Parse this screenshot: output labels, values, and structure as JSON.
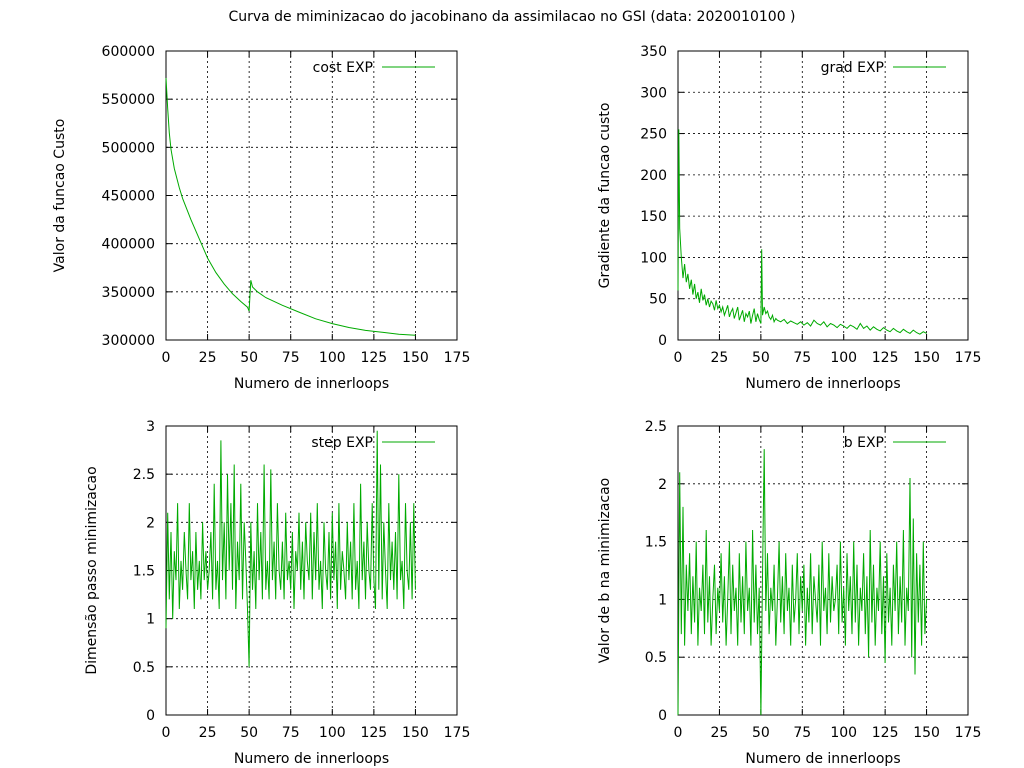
{
  "page_title": "Curva de miminizacao do jacobinano da assimilacao no GSI (data: 2020010100 )",
  "colors": {
    "series": "#00aa00",
    "grid": "#000000",
    "background": "#ffffff"
  },
  "chart_data": [
    {
      "type": "line",
      "name": "cost",
      "title": "",
      "xlabel": "Numero de innerloops",
      "ylabel": "Valor da funcao Custo",
      "xlim": [
        0,
        175
      ],
      "ylim": [
        300000,
        600000
      ],
      "xticks": [
        0,
        25,
        50,
        75,
        100,
        125,
        150,
        175
      ],
      "yticks": [
        300000,
        350000,
        400000,
        450000,
        500000,
        550000,
        600000
      ],
      "ytick_labels": [
        "300000",
        "350000",
        "400000",
        "450000",
        "500000",
        "550000",
        "600000"
      ],
      "legend": "top-right",
      "series": [
        {
          "name": "cost EXP",
          "x": [
            0,
            1,
            2,
            3,
            5,
            8,
            10,
            15,
            20,
            25,
            30,
            35,
            40,
            45,
            49,
            50,
            51,
            52,
            55,
            60,
            70,
            80,
            90,
            100,
            110,
            120,
            130,
            140,
            150
          ],
          "values": [
            572000,
            540000,
            515000,
            498000,
            478000,
            458000,
            447000,
            425000,
            405000,
            385000,
            370000,
            358000,
            348000,
            340000,
            334000,
            330000,
            362000,
            355000,
            350000,
            344000,
            336000,
            329000,
            322000,
            317000,
            313000,
            310000,
            308000,
            306000,
            305000
          ]
        }
      ]
    },
    {
      "type": "line",
      "name": "grad",
      "title": "",
      "xlabel": "Numero de innerloops",
      "ylabel": "Gradiente da funcao custo",
      "xlim": [
        0,
        175
      ],
      "ylim": [
        0,
        350
      ],
      "xticks": [
        0,
        25,
        50,
        75,
        100,
        125,
        150,
        175
      ],
      "yticks": [
        0,
        50,
        100,
        150,
        200,
        250,
        300,
        350
      ],
      "ytick_labels": [
        "0",
        "50",
        "100",
        "150",
        "200",
        "250",
        "300",
        "350"
      ],
      "legend": "top-right",
      "series": [
        {
          "name": "grad EXP",
          "x": [
            0,
            0.5,
            1,
            2,
            3,
            4,
            5,
            6,
            7,
            8,
            9,
            10,
            11,
            12,
            13,
            14,
            15,
            16,
            17,
            18,
            19,
            20,
            21,
            22,
            23,
            24,
            25,
            26,
            27,
            28,
            29,
            30,
            31,
            32,
            33,
            34,
            35,
            36,
            37,
            38,
            39,
            40,
            41,
            42,
            43,
            44,
            45,
            46,
            47,
            48,
            49,
            50,
            50.5,
            51,
            52,
            53,
            54,
            55,
            56,
            57,
            58,
            59,
            60,
            62,
            64,
            66,
            68,
            70,
            72,
            74,
            76,
            78,
            80,
            82,
            84,
            86,
            88,
            90,
            92,
            94,
            96,
            98,
            100,
            102,
            104,
            106,
            108,
            110,
            112,
            114,
            116,
            118,
            120,
            122,
            124,
            126,
            128,
            130,
            132,
            134,
            136,
            138,
            140,
            142,
            144,
            146,
            148,
            150
          ],
          "values": [
            60,
            255,
            135,
            100,
            75,
            92,
            70,
            80,
            62,
            73,
            55,
            68,
            50,
            58,
            45,
            62,
            48,
            55,
            42,
            50,
            40,
            47,
            44,
            36,
            48,
            38,
            42,
            34,
            40,
            30,
            36,
            42,
            28,
            34,
            38,
            26,
            33,
            40,
            24,
            30,
            36,
            22,
            32,
            28,
            35,
            20,
            30,
            38,
            22,
            32,
            25,
            20,
            110,
            30,
            40,
            32,
            35,
            28,
            25,
            30,
            22,
            26,
            24,
            22,
            25,
            20,
            23,
            21,
            19,
            22,
            18,
            21,
            17,
            24,
            20,
            18,
            22,
            16,
            20,
            18,
            15,
            19,
            17,
            14,
            18,
            16,
            13,
            20,
            14,
            17,
            12,
            16,
            13,
            11,
            15,
            12,
            10,
            14,
            11,
            9,
            13,
            10,
            8,
            12,
            9,
            7,
            10,
            8
          ]
        }
      ]
    },
    {
      "type": "line",
      "name": "step",
      "title": "",
      "xlabel": "Numero de innerloops",
      "ylabel": "Dimensão passo minimizacao",
      "xlim": [
        0,
        175
      ],
      "ylim": [
        0,
        3
      ],
      "xticks": [
        0,
        25,
        50,
        75,
        100,
        125,
        150,
        175
      ],
      "yticks": [
        0,
        0.5,
        1,
        1.5,
        2,
        2.5,
        3
      ],
      "ytick_labels": [
        "0",
        "0.5",
        "1",
        "1.5",
        "2",
        "2.5",
        "3"
      ],
      "legend": "top-right",
      "series": [
        {
          "name": "step EXP",
          "x": [
            0,
            1,
            2,
            3,
            4,
            5,
            6,
            7,
            8,
            9,
            10,
            11,
            12,
            13,
            14,
            15,
            16,
            17,
            18,
            19,
            20,
            21,
            22,
            23,
            24,
            25,
            26,
            27,
            28,
            29,
            30,
            31,
            32,
            33,
            34,
            35,
            36,
            37,
            38,
            39,
            40,
            41,
            42,
            43,
            44,
            45,
            46,
            47,
            48,
            49,
            50,
            51,
            52,
            53,
            54,
            55,
            56,
            57,
            58,
            59,
            60,
            61,
            62,
            63,
            64,
            65,
            66,
            67,
            68,
            69,
            70,
            71,
            72,
            73,
            74,
            75,
            76,
            77,
            78,
            79,
            80,
            81,
            82,
            83,
            84,
            85,
            86,
            87,
            88,
            89,
            90,
            91,
            92,
            93,
            94,
            95,
            96,
            97,
            98,
            99,
            100,
            101,
            102,
            103,
            104,
            105,
            106,
            107,
            108,
            109,
            110,
            111,
            112,
            113,
            114,
            115,
            116,
            117,
            118,
            119,
            120,
            121,
            122,
            123,
            124,
            125,
            126,
            127,
            128,
            129,
            130,
            131,
            132,
            133,
            134,
            135,
            136,
            137,
            138,
            139,
            140,
            141,
            142,
            143,
            144,
            145,
            146,
            147,
            148,
            149,
            150
          ],
          "values": [
            0.9,
            2.1,
            1.2,
            1.9,
            1.0,
            1.7,
            1.4,
            2.2,
            1.1,
            1.6,
            1.3,
            1.9,
            1.5,
            1.2,
            2.2,
            1.4,
            1.7,
            1.1,
            1.9,
            1.3,
            1.6,
            1.2,
            2.0,
            1.4,
            1.7,
            1.3,
            1.5,
            1.9,
            1.2,
            2.4,
            1.3,
            1.6,
            1.1,
            2.85,
            1.4,
            2.0,
            1.2,
            2.5,
            1.5,
            2.2,
            1.3,
            2.6,
            1.1,
            1.8,
            1.4,
            2.4,
            1.2,
            2.0,
            1.6,
            1.1,
            0.5,
            2.0,
            1.3,
            1.7,
            1.1,
            2.2,
            1.4,
            1.9,
            1.2,
            2.6,
            1.3,
            1.6,
            1.2,
            2.55,
            1.4,
            1.8,
            1.2,
            2.2,
            1.5,
            1.3,
            1.8,
            1.2,
            2.1,
            1.4,
            1.6,
            1.3,
            1.9,
            1.1,
            1.7,
            1.5,
            2.1,
            1.3,
            1.8,
            1.2,
            2.0,
            1.6,
            1.4,
            2.1,
            1.2,
            1.9,
            1.4,
            2.2,
            1.3,
            1.6,
            1.1,
            2.0,
            1.5,
            1.3,
            1.9,
            1.2,
            2.1,
            1.4,
            1.8,
            1.1,
            2.2,
            1.3,
            1.7,
            1.5,
            1.2,
            2.0,
            1.4,
            1.8,
            1.2,
            2.2,
            1.3,
            1.6,
            1.1,
            2.4,
            1.4,
            1.8,
            1.2,
            2.0,
            1.5,
            1.3,
            2.2,
            1.4,
            1.1,
            2.95,
            1.3,
            2.6,
            1.2,
            2.0,
            1.5,
            1.1,
            2.2,
            1.4,
            1.8,
            1.3,
            1.9,
            1.2,
            2.5,
            1.4,
            1.6,
            1.1,
            2.2,
            1.5,
            1.3,
            2.0,
            1.2,
            2.2,
            1.3
          ]
        }
      ]
    },
    {
      "type": "line",
      "name": "b",
      "title": "",
      "xlabel": "Numero de innerloops",
      "ylabel": "Valor de b na minimizacao",
      "xlim": [
        0,
        175
      ],
      "ylim": [
        0,
        2.5
      ],
      "xticks": [
        0,
        25,
        50,
        75,
        100,
        125,
        150,
        175
      ],
      "yticks": [
        0,
        0.5,
        1,
        1.5,
        2,
        2.5
      ],
      "ytick_labels": [
        "0",
        "0.5",
        "1",
        "1.5",
        "2",
        "2.5"
      ],
      "legend": "top-right",
      "series": [
        {
          "name": "b EXP",
          "x": [
            0,
            1,
            2,
            3,
            4,
            5,
            6,
            7,
            8,
            9,
            10,
            11,
            12,
            13,
            14,
            15,
            16,
            17,
            18,
            19,
            20,
            21,
            22,
            23,
            24,
            25,
            26,
            27,
            28,
            29,
            30,
            31,
            32,
            33,
            34,
            35,
            36,
            37,
            38,
            39,
            40,
            41,
            42,
            43,
            44,
            45,
            46,
            47,
            48,
            49,
            50,
            51,
            52,
            53,
            54,
            55,
            56,
            57,
            58,
            59,
            60,
            61,
            62,
            63,
            64,
            65,
            66,
            67,
            68,
            69,
            70,
            71,
            72,
            73,
            74,
            75,
            76,
            77,
            78,
            79,
            80,
            81,
            82,
            83,
            84,
            85,
            86,
            87,
            88,
            89,
            90,
            91,
            92,
            93,
            94,
            95,
            96,
            97,
            98,
            99,
            100,
            101,
            102,
            103,
            104,
            105,
            106,
            107,
            108,
            109,
            110,
            111,
            112,
            113,
            114,
            115,
            116,
            117,
            118,
            119,
            120,
            121,
            122,
            123,
            124,
            125,
            126,
            127,
            128,
            129,
            130,
            131,
            132,
            133,
            134,
            135,
            136,
            137,
            138,
            139,
            140,
            141,
            142,
            143,
            144,
            145,
            146,
            147,
            148,
            149,
            150,
            151
          ],
          "values": [
            0.0,
            2.1,
            0.7,
            1.8,
            0.6,
            1.3,
            0.9,
            1.4,
            0.7,
            1.2,
            0.8,
            1.5,
            0.6,
            1.1,
            0.9,
            1.3,
            0.7,
            1.6,
            0.8,
            1.2,
            0.6,
            1.0,
            1.3,
            0.7,
            1.1,
            0.9,
            1.4,
            0.8,
            1.2,
            0.6,
            1.0,
            1.5,
            0.7,
            1.3,
            0.9,
            1.1,
            0.6,
            1.4,
            0.8,
            1.2,
            0.7,
            1.5,
            0.9,
            1.1,
            0.6,
            1.6,
            0.8,
            1.3,
            0.7,
            1.1,
            0.0,
            1.2,
            2.3,
            0.9,
            1.4,
            0.7,
            1.1,
            0.9,
            1.3,
            0.6,
            1.0,
            1.5,
            0.8,
            1.2,
            0.7,
            1.4,
            0.9,
            1.1,
            0.6,
            1.3,
            0.8,
            1.0,
            1.4,
            0.7,
            1.2,
            0.9,
            1.3,
            0.6,
            1.1,
            0.8,
            1.4,
            0.7,
            1.2,
            1.0,
            0.8,
            1.3,
            0.6,
            1.5,
            0.9,
            1.1,
            0.7,
            1.4,
            0.8,
            1.2,
            0.9,
            1.0,
            1.3,
            0.7,
            1.5,
            0.8,
            1.1,
            0.6,
            1.4,
            0.9,
            1.2,
            0.7,
            1.5,
            0.8,
            1.3,
            0.6,
            1.1,
            0.9,
            1.4,
            0.7,
            1.2,
            0.5,
            1.6,
            0.8,
            1.3,
            0.6,
            1.1,
            0.9,
            1.5,
            0.7,
            1.2,
            0.45,
            1.4,
            0.8,
            1.1,
            0.6,
            1.3,
            0.9,
            1.5,
            0.7,
            1.2,
            0.8,
            1.6,
            0.6,
            1.1,
            0.9,
            2.05,
            0.5,
            1.7,
            0.35,
            1.4,
            0.8,
            1.3,
            0.6,
            1.5,
            0.7,
            1.0,
            1.0
          ]
        }
      ]
    }
  ]
}
